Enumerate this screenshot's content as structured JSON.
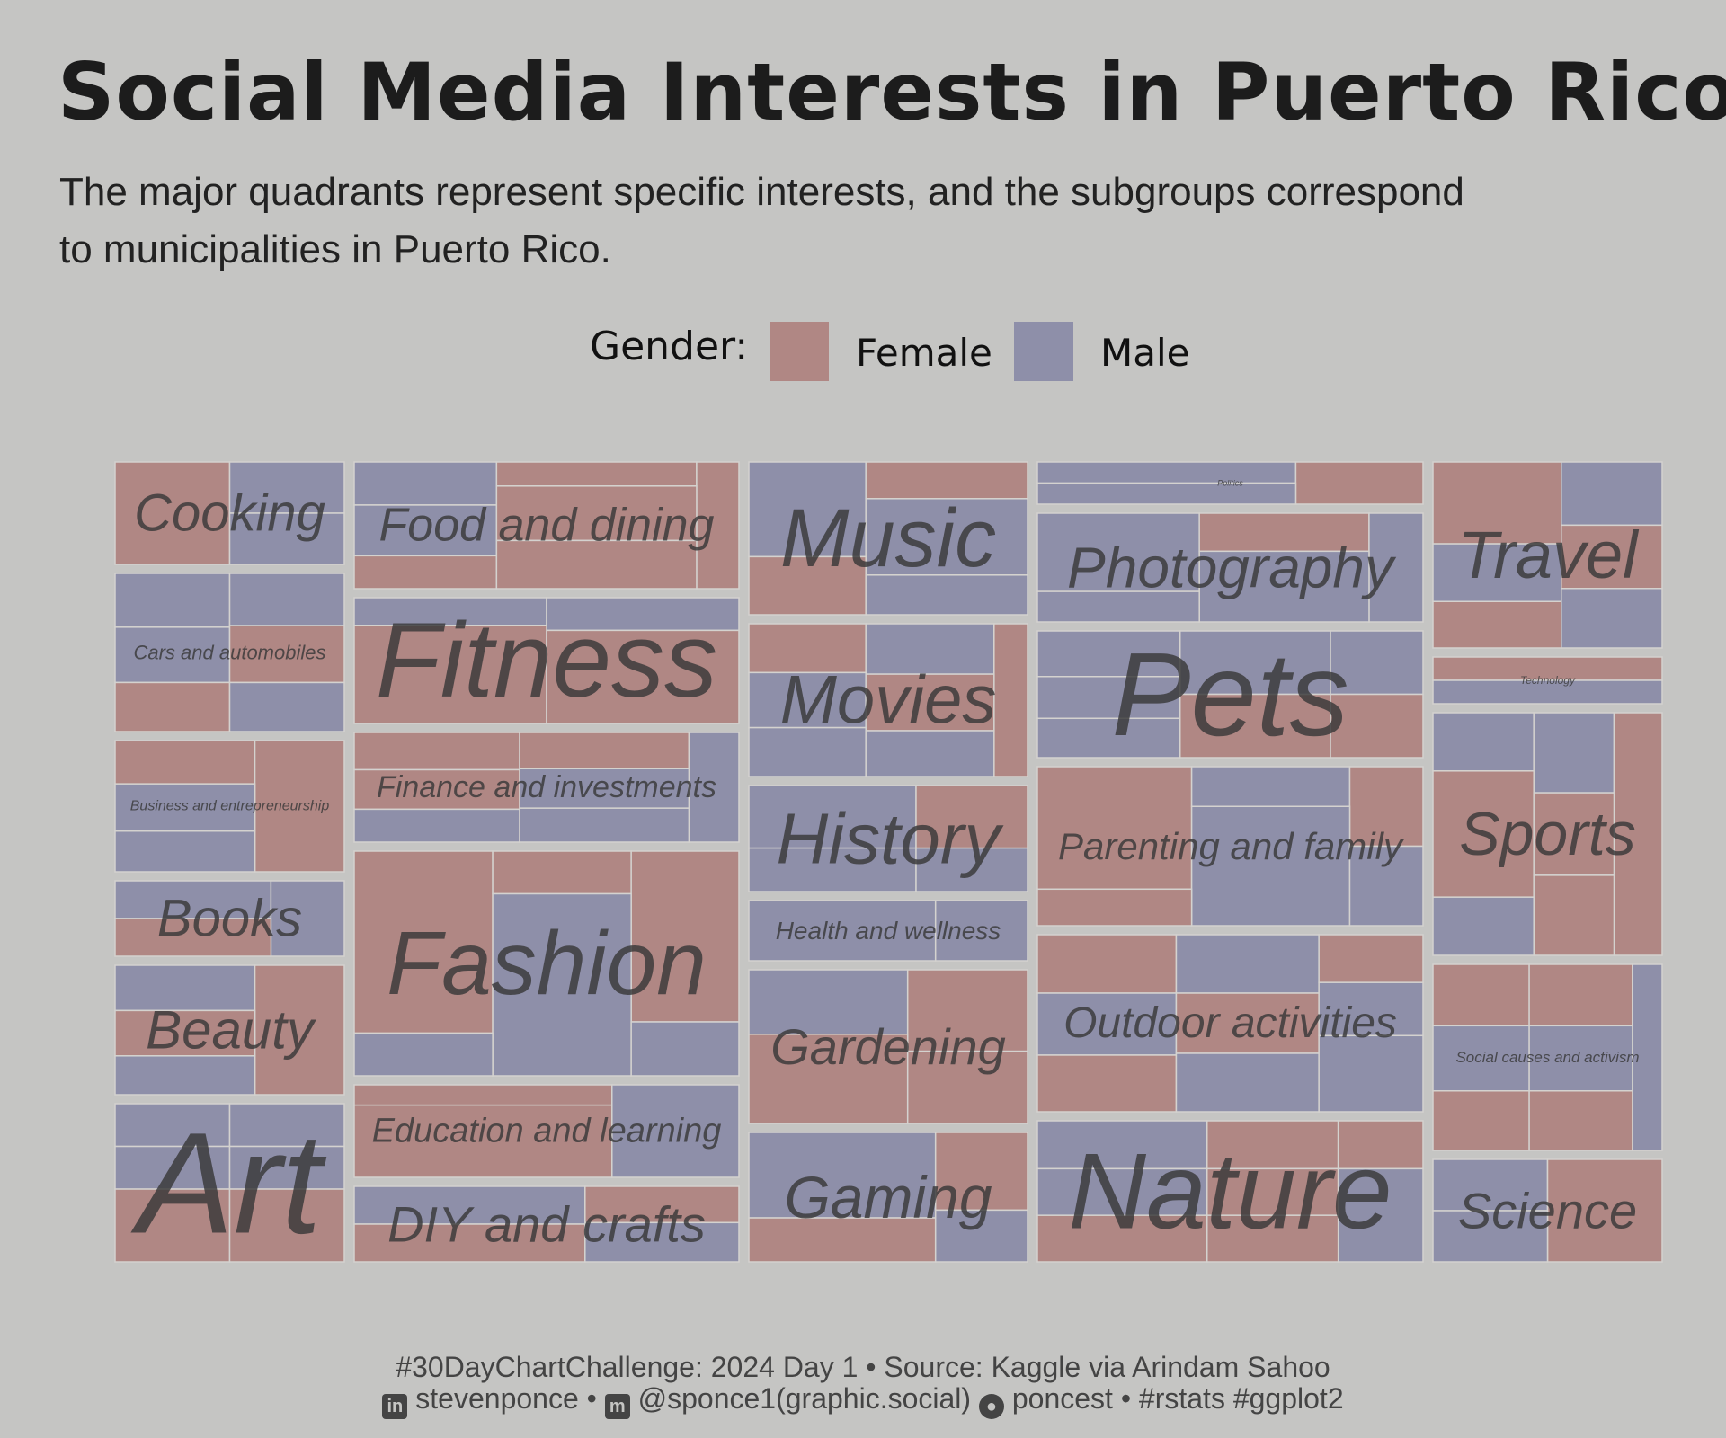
{
  "title": "Social Media Interests in Puerto Rico",
  "subtitle": "The major quadrants represent specific interests, and the subgroups correspond to municipalities in Puerto Rico.",
  "legend": {
    "title": "Gender:",
    "items": [
      {
        "label": "Female",
        "color": "#b08784"
      },
      {
        "label": "Male",
        "color": "#8e8fa9"
      }
    ]
  },
  "caption": {
    "line1": "#30DayChartChallenge: 2024 Day 1 • Source: Kaggle via Arindam Sahoo",
    "linkedin_icon": "linkedin-icon",
    "linkedin_text": "stevenponce •",
    "mastodon_icon": "mastodon-icon",
    "mastodon_text": "@sponce1(graphic.social)",
    "github_icon": "github-icon",
    "github_text": "poncest • #rstats #ggplot2"
  },
  "chart_data": {
    "type": "treemap",
    "grouping": "interest > municipality, fill = gender",
    "colors": {
      "Female": "#b08784",
      "Male": "#8e8fa9",
      "background": "#c5c5c3"
    },
    "interests": [
      {
        "name": "Cooking",
        "value": 9
      },
      {
        "name": "Cars and automobiles",
        "value": 14
      },
      {
        "name": "Business and entrepreneurship",
        "value": 11
      },
      {
        "name": "Books",
        "value": 6
      },
      {
        "name": "Beauty",
        "value": 11
      },
      {
        "name": "Art",
        "value": 14
      },
      {
        "name": "Food and dining",
        "value": 15
      },
      {
        "name": "Fitness",
        "value": 19
      },
      {
        "name": "Finance and investments",
        "value": 16
      },
      {
        "name": "Fashion",
        "value": 33
      },
      {
        "name": "Education and learning",
        "value": 14
      },
      {
        "name": "DIY and crafts",
        "value": 11
      },
      {
        "name": "Music",
        "value": 15
      },
      {
        "name": "Movies",
        "value": 15
      },
      {
        "name": "History",
        "value": 10
      },
      {
        "name": "Health and wellness",
        "value": 5
      },
      {
        "name": "Gardening",
        "value": 15
      },
      {
        "name": "Gaming",
        "value": 12
      },
      {
        "name": "Politics",
        "value": 5
      },
      {
        "name": "Photography",
        "value": 14
      },
      {
        "name": "Pets",
        "value": 16
      },
      {
        "name": "Parenting and family",
        "value": 20
      },
      {
        "name": "Outdoor activities",
        "value": 21
      },
      {
        "name": "Nature",
        "value": 18
      },
      {
        "name": "Travel",
        "value": 17
      },
      {
        "name": "Technology",
        "value": 4
      },
      {
        "name": "Sports",
        "value": 21
      },
      {
        "name": "Social causes and activism",
        "value": 16
      },
      {
        "name": "Science",
        "value": 9
      }
    ]
  }
}
